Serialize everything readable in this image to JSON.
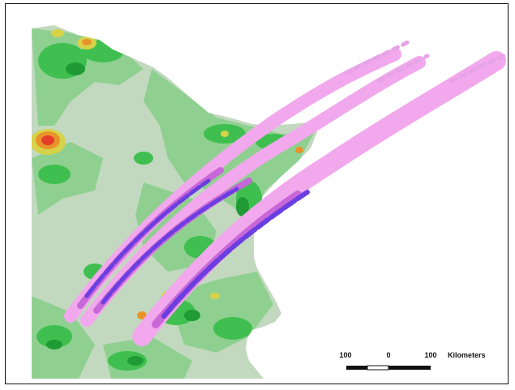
{
  "map": {
    "scale_bar": {
      "labels": [
        "100",
        "0",
        "100"
      ],
      "unit": "Kilometers"
    },
    "colors": {
      "land_light": "#c2d9bf",
      "land_mid": "#8fd090",
      "land_green": "#3fbf4f",
      "land_dark": "#1f9a34",
      "yellow": "#d6d24a",
      "orange": "#e8942a",
      "red": "#e43c2a",
      "swath_pink": "#f2a8ec",
      "swath_magenta": "#c867d8",
      "swath_violet": "#6a3ee0"
    },
    "layers": [
      "land-elevation",
      "swath-pink",
      "swath-core-blue"
    ]
  }
}
